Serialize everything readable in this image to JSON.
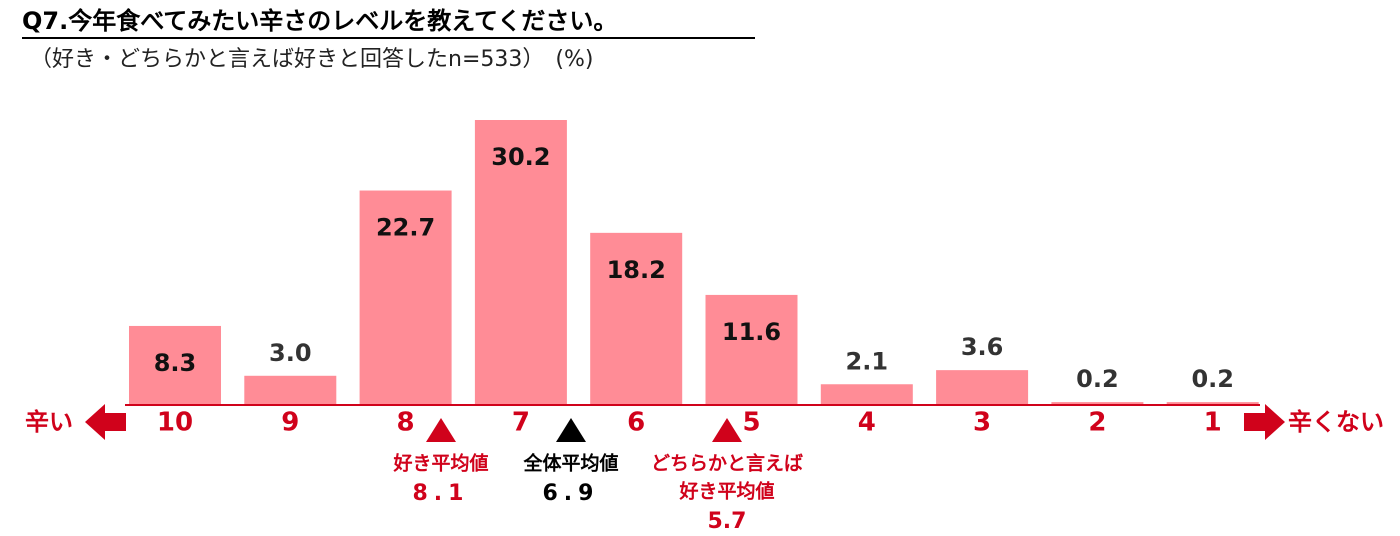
{
  "chart_data": {
    "type": "bar",
    "title": "Q7.今年食べてみたい辛さのレベルを教えてください。",
    "subtitle": "（好き・どちらかと言えば好きと回答したn=533）　(%)",
    "categories": [
      "10",
      "9",
      "8",
      "7",
      "6",
      "5",
      "4",
      "3",
      "2",
      "1"
    ],
    "values": [
      8.3,
      3.0,
      22.7,
      30.2,
      18.2,
      11.6,
      2.1,
      3.6,
      0.2,
      0.2
    ],
    "value_labels": [
      "8.3",
      "3.0",
      "22.7",
      "30.2",
      "18.2",
      "11.6",
      "2.1",
      "3.6",
      "0.2",
      "0.2"
    ],
    "color": "#ff8c96",
    "axis_color": "#d0021b",
    "left_label": "辛い",
    "right_label": "辛くない",
    "annotations": [
      {
        "lines": [
          "好き平均値"
        ],
        "value": 8.1,
        "color": "#d0021b"
      },
      {
        "lines": [
          "全体平均値"
        ],
        "value": 6.9,
        "color": "#000000"
      },
      {
        "lines": [
          "どちらかと言えば",
          "好き平均値"
        ],
        "value": 5.7,
        "color": "#d0021b"
      }
    ]
  }
}
